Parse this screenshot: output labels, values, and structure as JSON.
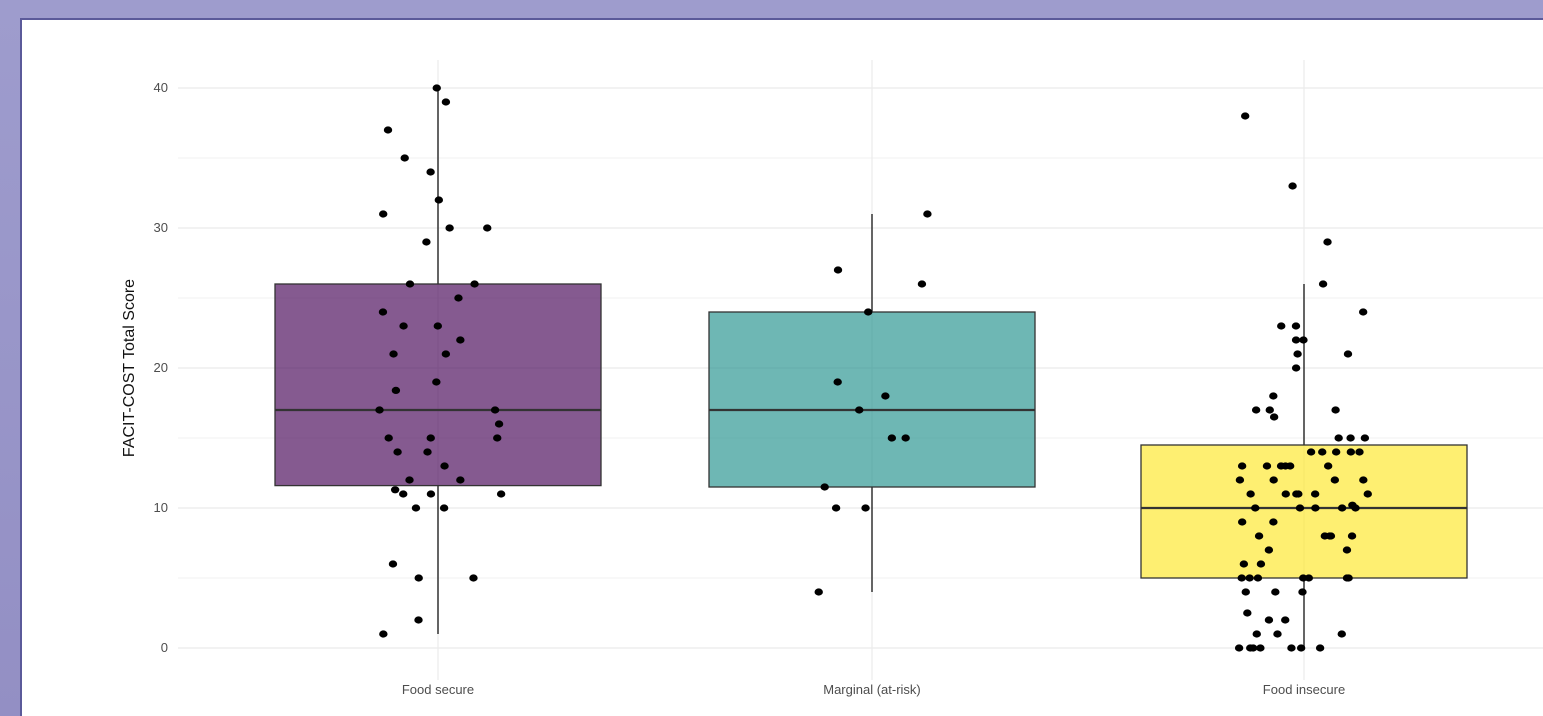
{
  "chart_data": {
    "type": "box",
    "ylabel": "FACIT-COST Total Score",
    "xlabel": "",
    "ylim": [
      0,
      40
    ],
    "yticks": [
      "0",
      "10",
      "20",
      "30",
      "40"
    ],
    "grid": true,
    "categories": [
      "Food secure",
      "Marginal (at-risk)",
      "Food insecure"
    ],
    "boxes": [
      {
        "category": "Food secure",
        "color": "#440154",
        "q1": 11.6,
        "median": 17,
        "q3": 26,
        "whisker_low": 1,
        "whisker_high": 40,
        "points": [
          40,
          39,
          37,
          35,
          34,
          32,
          31,
          30,
          30,
          29,
          26,
          26,
          25,
          24,
          23,
          23,
          22,
          21,
          21,
          19,
          18.4,
          17,
          17,
          16,
          15,
          15,
          15,
          14,
          14,
          13,
          12,
          12,
          11.3,
          11,
          11,
          11,
          10,
          10,
          6,
          5,
          5,
          2,
          1
        ]
      },
      {
        "category": "Marginal (at-risk)",
        "color": "#21908c",
        "q1": 11.5,
        "median": 17,
        "q3": 24,
        "whisker_low": 4,
        "whisker_high": 31,
        "points": [
          31,
          27,
          26,
          24,
          19,
          18,
          17,
          15,
          15,
          11.5,
          10,
          10,
          4
        ]
      },
      {
        "category": "Food insecure",
        "color": "#fde725",
        "q1": 5,
        "median": 10,
        "q3": 14.5,
        "whisker_low": 0,
        "whisker_high": 26,
        "points": [
          38,
          33,
          29,
          26,
          24,
          23,
          23,
          22,
          22,
          21,
          21,
          20,
          18,
          17,
          17,
          17,
          16.5,
          15,
          15,
          15,
          14,
          14,
          14,
          14,
          14,
          13,
          13,
          13,
          13,
          13,
          13,
          12,
          12,
          12,
          12,
          11,
          11,
          11,
          11,
          11,
          11,
          10.2,
          10,
          10,
          10,
          10,
          10,
          9,
          9,
          8,
          8,
          8,
          8,
          8,
          7,
          7,
          6,
          6,
          5,
          5,
          5,
          5,
          5,
          5,
          5,
          4,
          4,
          4,
          2.5,
          2,
          2,
          1,
          1,
          1,
          0,
          0,
          0,
          0,
          0,
          0,
          0
        ]
      }
    ]
  }
}
